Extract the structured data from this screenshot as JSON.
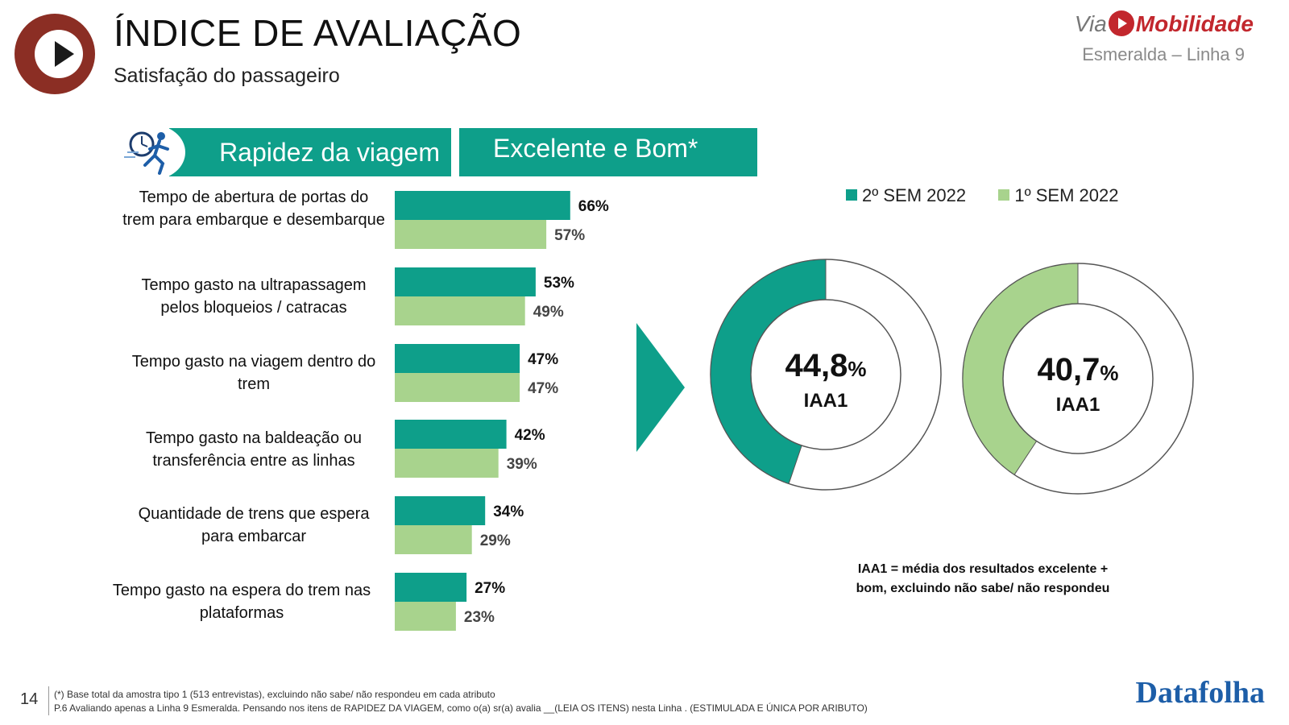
{
  "header": {
    "title": "ÍNDICE DE AVALIAÇÃO",
    "subtitle": "Satisfação do passageiro",
    "brand_via": "Via",
    "brand_name": "Mobilidade",
    "brand_line": "Esmeralda – Linha 9"
  },
  "section": {
    "left_title": "Rapidez da viagem",
    "right_title": "Excelente e Bom*"
  },
  "colors": {
    "series1": "#0e9f8a",
    "series2": "#a8d38d",
    "brand_red": "#c2272d"
  },
  "chart_data": [
    {
      "type": "bar",
      "orientation": "horizontal",
      "categories": [
        "Tempo de abertura de portas do trem para embarque e desembarque",
        "Tempo gasto na ultrapassagem pelos bloqueios / catracas",
        "Tempo gasto na viagem dentro do trem",
        "Tempo gasto na baldeação ou transferência entre as linhas",
        "Quantidade de trens que espera para embarcar",
        "Tempo gasto na espera do trem nas plataformas"
      ],
      "series": [
        {
          "name": "2º SEM 2022",
          "values": [
            66,
            53,
            47,
            42,
            34,
            27
          ]
        },
        {
          "name": "1º SEM 2022",
          "values": [
            57,
            49,
            47,
            39,
            29,
            23
          ]
        }
      ],
      "value_suffix": "%",
      "xlim": [
        0,
        100
      ]
    },
    {
      "type": "pie",
      "subtype": "donut",
      "series_name": "2º SEM 2022",
      "value": 44.8,
      "center_value": "44,8",
      "center_unit": "%",
      "center_label": "IAA1"
    },
    {
      "type": "pie",
      "subtype": "donut",
      "series_name": "1º SEM 2022",
      "value": 40.7,
      "center_value": "40,7",
      "center_unit": "%",
      "center_label": "IAA1"
    }
  ],
  "legend": [
    {
      "label": "2º SEM 2022"
    },
    {
      "label": "1º SEM 2022"
    }
  ],
  "note": "IAA1 = média dos resultados excelente + bom, excluindo não sabe/ não respondeu",
  "footer": {
    "page_number": "14",
    "line1": "(*) Base total da amostra tipo 1 (513 entrevistas), excluindo não sabe/ não respondeu em cada atributo",
    "line2": "P.6 Avaliando apenas a Linha 9 Esmeralda. Pensando nos itens de RAPIDEZ DA VIAGEM, como o(a) sr(a) avalia __(LEIA OS ITENS) nesta Linha . (ESTIMULADA E ÚNICA POR ARIBUTO)",
    "source_brand": "Datafolha"
  }
}
